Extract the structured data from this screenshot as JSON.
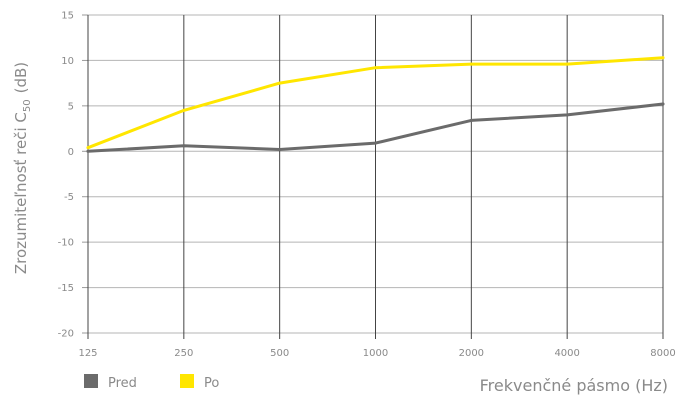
{
  "chart_data": {
    "type": "line",
    "x": [
      "125",
      "250",
      "500",
      "1000",
      "2000",
      "4000",
      "8000"
    ],
    "ylabel_main": "Zrozumiteľnosť reči  C",
    "ylabel_sub": "50",
    "ylabel_unit": "(dB)",
    "xlabel": "Frekvenčné pásmo (Hz)",
    "ylim": [
      -20,
      15
    ],
    "yticks": [
      "15",
      "10",
      "5",
      "0",
      "-5",
      "-10",
      "-15",
      "-20"
    ],
    "grid": true,
    "legend_position": "bottom-left",
    "series": [
      {
        "name": "Pred",
        "color": "#6b6b6b",
        "values": [
          0.0,
          0.6,
          0.2,
          0.9,
          3.4,
          4.0,
          5.2
        ]
      },
      {
        "name": "Po",
        "color": "#ffe600",
        "values": [
          0.4,
          4.5,
          7.5,
          9.2,
          9.6,
          9.6,
          10.3
        ]
      }
    ]
  }
}
